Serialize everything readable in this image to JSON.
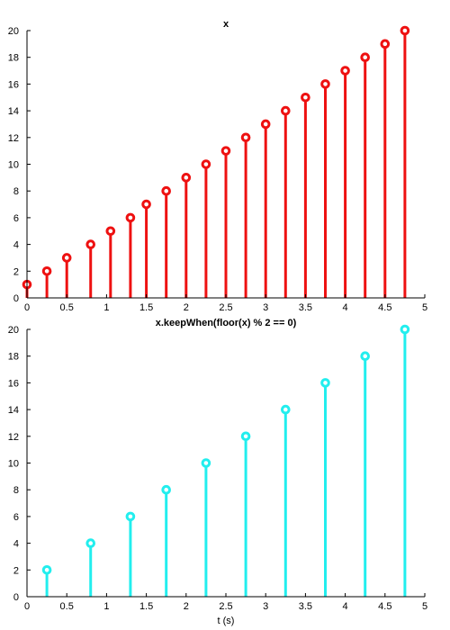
{
  "chart_data": [
    {
      "type": "stem",
      "title": "x",
      "xlabel": "",
      "ylabel": "",
      "xlim": [
        0,
        5
      ],
      "ylim": [
        0,
        20
      ],
      "xticks": [
        "0",
        "0.5",
        "1",
        "1.5",
        "2",
        "2.5",
        "3",
        "3.5",
        "4",
        "4.5",
        "5"
      ],
      "yticks": [
        "0",
        "2",
        "4",
        "6",
        "8",
        "10",
        "12",
        "14",
        "16",
        "18",
        "20"
      ],
      "grid": false,
      "color": "#ee1111",
      "x": [
        0.0,
        0.25,
        0.5,
        0.8,
        1.05,
        1.3,
        1.5,
        1.75,
        2.0,
        2.25,
        2.5,
        2.75,
        3.0,
        3.25,
        3.5,
        3.75,
        4.0,
        4.25,
        4.5,
        4.75
      ],
      "y": [
        1,
        2,
        3,
        4,
        5,
        6,
        7,
        8,
        9,
        10,
        11,
        12,
        13,
        14,
        15,
        16,
        17,
        18,
        19,
        20
      ]
    },
    {
      "type": "stem",
      "title": "x.keepWhen(floor(x) % 2 == 0)",
      "xlabel": "t (s)",
      "ylabel": "",
      "xlim": [
        0,
        5
      ],
      "ylim": [
        0,
        20
      ],
      "xticks": [
        "0",
        "0.5",
        "1",
        "1.5",
        "2",
        "2.5",
        "3",
        "3.5",
        "4",
        "4.5",
        "5"
      ],
      "yticks": [
        "0",
        "2",
        "4",
        "6",
        "8",
        "10",
        "12",
        "14",
        "16",
        "18",
        "20"
      ],
      "grid": false,
      "color": "#22eeee",
      "x": [
        0.25,
        0.8,
        1.3,
        1.75,
        2.25,
        2.75,
        3.25,
        3.75,
        4.25,
        4.75
      ],
      "y": [
        2,
        4,
        6,
        8,
        10,
        12,
        14,
        16,
        18,
        20
      ]
    }
  ]
}
